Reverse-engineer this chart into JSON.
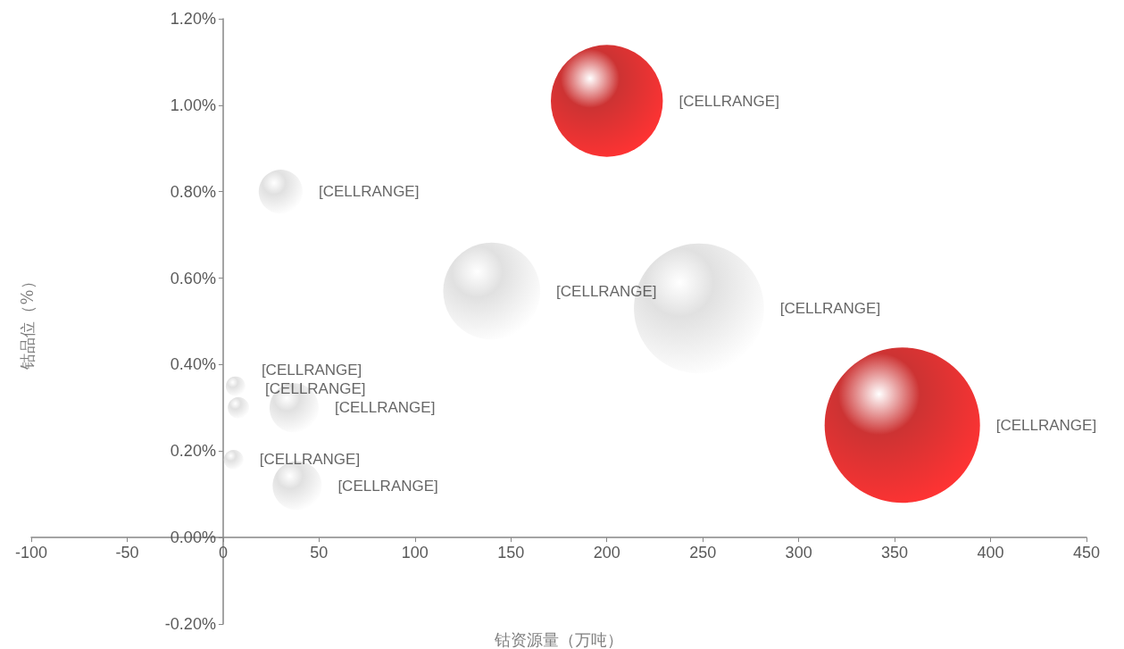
{
  "chart_data": {
    "type": "bubble",
    "xlabel": "钴资源量（万吨）",
    "ylabel": "钴品位（%）",
    "x": [
      200,
      30,
      140,
      248,
      354,
      6.5,
      8,
      37,
      5.5,
      38.6
    ],
    "values": [
      1.01,
      0.8,
      0.57,
      0.53,
      0.26,
      0.35,
      0.3,
      0.3,
      0.18,
      0.12
    ],
    "sizes": [
      0.52,
      0.08,
      0.39,
      0.7,
      1,
      0.016,
      0.019,
      0.1,
      0.016,
      0.1
    ],
    "colors": [
      "#c00000",
      "#d9d9d9",
      "#d9d9d9",
      "#d9d9d9",
      "#c00000",
      "#d9d9d9",
      "#d9d9d9",
      "#d9d9d9",
      "#d9d9d9",
      "#d9d9d9"
    ],
    "value_labels": [
      "[CELLRANGE]",
      "[CELLRANGE]",
      "[CELLRANGE]",
      "[CELLRANGE]",
      "[CELLRANGE]",
      "[CELLRANGE]",
      "[CELLRANGE]",
      "[CELLRANGE]",
      "[CELLRANGE]",
      "[CELLRANGE]"
    ],
    "xlim": [
      -100,
      450
    ],
    "xticks": [
      -100,
      -50,
      0,
      50,
      100,
      150,
      200,
      250,
      300,
      350,
      400,
      450
    ],
    "ylim": [
      -0.2,
      1.2
    ],
    "yticks": [
      {
        "value": -0.2,
        "label": "-0.20%"
      },
      {
        "value": 0,
        "label": "0.00%"
      },
      {
        "value": 0.2,
        "label": "0.20%"
      },
      {
        "value": 0.4,
        "label": "0.40%"
      },
      {
        "value": 0.6,
        "label": "0.60%"
      },
      {
        "value": 0.8,
        "label": "0.80%"
      },
      {
        "value": 1.0,
        "label": "1.00%"
      },
      {
        "value": 1.2,
        "label": "1.20%"
      }
    ]
  }
}
